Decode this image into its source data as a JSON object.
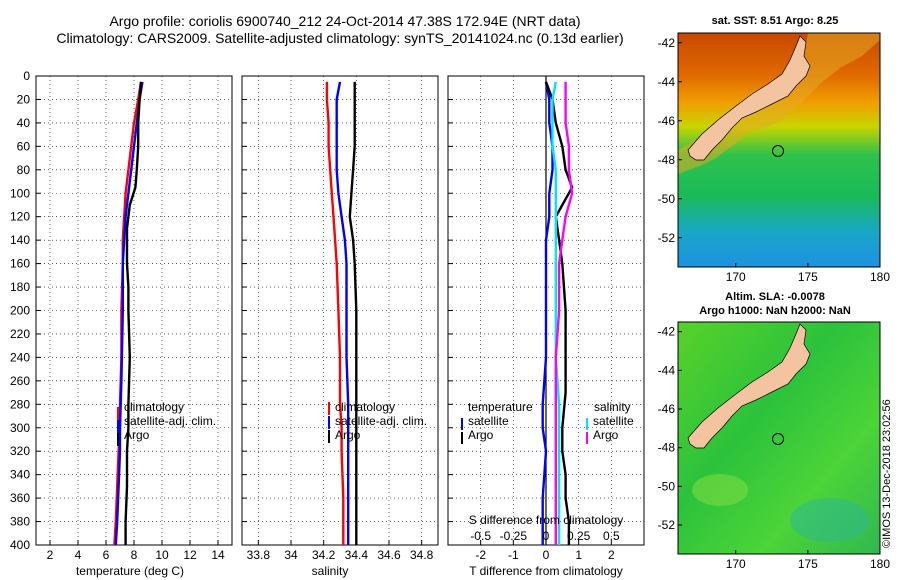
{
  "title_line1": "Argo profile: coriolis 6900740_212 24-Oct-2014 47.38S 172.94E (NRT data)",
  "title_line2": "Climatology: CARS2009. Satellite-adjusted climatology: synTS_20141024.nc (0.13d earlier)",
  "side_label": "©IMOS 13-Dec-2018 23:02:56",
  "colors": {
    "climatology": "#ff0000",
    "satellite": "#0000ff",
    "argo": "#000000",
    "s_satellite": "#00e5ff",
    "s_argo": "#ff00ff"
  },
  "chart_data": [
    {
      "type": "line",
      "panel": "temperature",
      "xlabel": "temperature (deg C)",
      "xlim": [
        1,
        15
      ],
      "xticks": [
        2,
        4,
        6,
        8,
        10,
        12,
        14
      ],
      "ylim": [
        400,
        0
      ],
      "yticks": [
        0,
        20,
        40,
        60,
        80,
        100,
        120,
        140,
        160,
        180,
        200,
        220,
        240,
        260,
        280,
        300,
        320,
        340,
        360,
        380,
        400
      ],
      "legend": [
        "climatology",
        "satellite-adj. clim.",
        "Argo"
      ],
      "legend_position": "lower-center",
      "series": [
        {
          "name": "climatology",
          "color": "#ff0000",
          "x": [
            8.5,
            8.3,
            8.0,
            7.8,
            7.6,
            7.4,
            7.3,
            7.2,
            7.2,
            7.1,
            7.1,
            7.0,
            7.0,
            6.9,
            6.8,
            6.7,
            6.6
          ],
          "y": [
            5,
            20,
            40,
            60,
            80,
            100,
            120,
            140,
            160,
            200,
            240,
            280,
            300,
            320,
            350,
            380,
            400
          ]
        },
        {
          "name": "satellite-adj. clim.",
          "color": "#0000ff",
          "x": [
            8.6,
            8.4,
            8.2,
            8.0,
            7.8,
            7.6,
            7.4,
            7.3,
            7.2,
            7.2,
            7.1,
            7.0,
            7.0,
            6.9,
            6.8,
            6.7
          ],
          "y": [
            5,
            20,
            40,
            60,
            80,
            100,
            120,
            140,
            160,
            200,
            260,
            300,
            320,
            350,
            380,
            400
          ]
        },
        {
          "name": "Argo",
          "color": "#000000",
          "x": [
            8.5,
            8.4,
            8.3,
            8.3,
            8.2,
            8.1,
            7.7,
            7.5,
            7.5,
            7.6,
            7.6,
            7.7,
            7.6,
            7.6,
            7.5,
            7.5,
            7.4,
            7.4
          ],
          "y": [
            5,
            20,
            40,
            60,
            80,
            95,
            110,
            130,
            160,
            180,
            200,
            240,
            280,
            300,
            320,
            350,
            380,
            400
          ]
        }
      ]
    },
    {
      "type": "line",
      "panel": "salinity",
      "xlabel": "salinity",
      "xlim": [
        33.7,
        34.9
      ],
      "xticks": [
        33.8,
        34,
        34.2,
        34.4,
        34.6,
        34.8
      ],
      "xticklabels": [
        "33.8",
        "34",
        "34.2",
        "34.4",
        "34.6",
        "34.8"
      ],
      "ylim": [
        400,
        0
      ],
      "legend": [
        "climatology",
        "satellite-adj. clim.",
        "Argo"
      ],
      "legend_position": "lower-center",
      "series": [
        {
          "name": "climatology",
          "color": "#ff0000",
          "x": [
            34.22,
            34.22,
            34.23,
            34.23,
            34.24,
            34.25,
            34.26,
            34.27,
            34.28,
            34.29,
            34.3,
            34.3,
            34.31,
            34.31,
            34.32,
            34.32
          ],
          "y": [
            5,
            20,
            40,
            60,
            80,
            100,
            120,
            140,
            160,
            200,
            240,
            280,
            300,
            320,
            360,
            400
          ]
        },
        {
          "name": "satellite-adj. clim.",
          "color": "#0000ff",
          "x": [
            34.3,
            34.28,
            34.28,
            34.28,
            34.28,
            34.29,
            34.31,
            34.33,
            34.34,
            34.34,
            34.34,
            34.35,
            34.35,
            34.35,
            34.35
          ],
          "y": [
            5,
            20,
            40,
            60,
            80,
            100,
            120,
            140,
            160,
            200,
            240,
            280,
            320,
            360,
            400
          ]
        },
        {
          "name": "Argo",
          "color": "#000000",
          "x": [
            34.39,
            34.39,
            34.39,
            34.39,
            34.38,
            34.37,
            34.36,
            34.38,
            34.39,
            34.4,
            34.4,
            34.4,
            34.4,
            34.4,
            34.4
          ],
          "y": [
            5,
            20,
            40,
            60,
            80,
            100,
            120,
            140,
            160,
            200,
            240,
            280,
            320,
            360,
            400
          ]
        }
      ]
    },
    {
      "type": "line",
      "panel": "difference",
      "xlabel": "T difference from climatology",
      "inner_label": "S difference from climatology",
      "xlim": [
        -3,
        3
      ],
      "xticks": [
        -2,
        -1,
        0,
        1,
        2
      ],
      "s_xticklabels": [
        "-0.5",
        "-0.25",
        "0",
        "0.25",
        "0.5"
      ],
      "ylim": [
        400,
        0
      ],
      "legend_temperature": {
        "title": "temperature",
        "items": [
          "satellite",
          "Argo"
        ]
      },
      "legend_salinity": {
        "title": "salinity",
        "items": [
          "satellite",
          "Argo"
        ]
      },
      "series": [
        {
          "name": "T satellite",
          "color": "#0000ff",
          "x": [
            0.0,
            0.1,
            0.1,
            0.2,
            0.2,
            0.1,
            0.1,
            0.0,
            0.0,
            0.0,
            0.0,
            -0.1,
            -0.1,
            0.0,
            -0.1,
            -0.1
          ],
          "y": [
            5,
            20,
            40,
            60,
            80,
            100,
            120,
            140,
            160,
            200,
            240,
            280,
            300,
            320,
            360,
            400
          ]
        },
        {
          "name": "T Argo",
          "color": "#000000",
          "x": [
            0.0,
            0.2,
            0.3,
            0.5,
            0.6,
            0.8,
            0.5,
            0.3,
            0.4,
            0.5,
            0.6,
            0.6,
            0.6,
            0.5,
            0.5,
            0.6,
            0.6,
            0.7,
            0.7
          ],
          "y": [
            5,
            20,
            40,
            60,
            80,
            95,
            110,
            120,
            140,
            160,
            200,
            240,
            270,
            300,
            320,
            340,
            360,
            380,
            400
          ]
        },
        {
          "name": "S satellite",
          "color": "#00e5ff",
          "x": [
            0.3,
            0.2,
            0.2,
            0.2,
            0.3,
            0.3,
            0.3,
            0.3,
            0.3,
            0.3,
            0.3,
            0.4,
            0.4,
            0.4,
            0.4
          ],
          "y": [
            5,
            20,
            40,
            60,
            80,
            100,
            120,
            140,
            160,
            200,
            240,
            280,
            320,
            360,
            400
          ]
        },
        {
          "name": "S Argo",
          "color": "#ff00ff",
          "x": [
            0.6,
            0.6,
            0.6,
            0.7,
            0.7,
            0.8,
            0.6,
            0.5,
            0.4,
            0.4,
            0.3,
            0.3,
            0.3,
            0.3,
            0.3
          ],
          "y": [
            5,
            20,
            40,
            60,
            80,
            100,
            120,
            140,
            160,
            200,
            240,
            280,
            320,
            360,
            400
          ]
        }
      ]
    },
    {
      "type": "heatmap",
      "panel": "sst_map",
      "title": "sat. SST: 8.51 Argo: 8.25",
      "xlim": [
        166,
        180
      ],
      "ylim": [
        -53.5,
        -41.5
      ],
      "xticks": [
        170,
        175,
        180
      ],
      "yticks": [
        -42,
        -44,
        -46,
        -48,
        -50,
        -52
      ],
      "argo_position": {
        "lon": 172.94,
        "lat": -47.38
      }
    },
    {
      "type": "heatmap",
      "panel": "sla_map",
      "title_line1": "Altim. SLA: -0.0078",
      "title_line2": "Argo h1000: NaN h2000: NaN",
      "xlim": [
        166,
        180
      ],
      "ylim": [
        -53.5,
        -41.5
      ],
      "xticks": [
        170,
        175,
        180
      ],
      "yticks": [
        -42,
        -44,
        -46,
        -48,
        -50,
        -52
      ],
      "argo_position": {
        "lon": 172.94,
        "lat": -47.38
      }
    }
  ]
}
